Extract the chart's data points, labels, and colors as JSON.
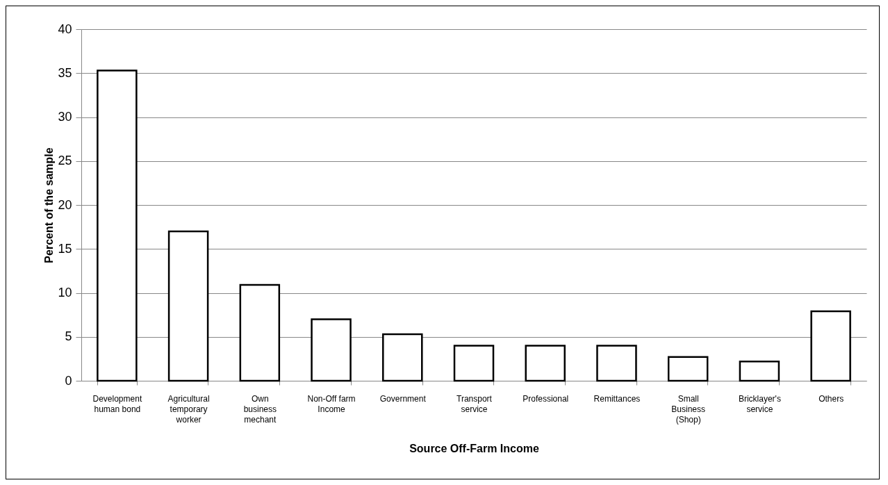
{
  "chart_data": {
    "type": "bar",
    "xlabel": "Source Off-Farm Income",
    "ylabel": "Percent of the sample",
    "categories": [
      "Development human bond",
      "Agricultural temporary worker",
      "Own business mechant",
      "Non-Off farm Income",
      "Government",
      "Transport service",
      "Professional",
      "Remittances",
      "Small Business (Shop)",
      "Bricklayer's service",
      "Others"
    ],
    "values": [
      35.3,
      17.0,
      10.9,
      7.0,
      5.3,
      4.0,
      4.0,
      4.0,
      2.7,
      2.2,
      7.9
    ],
    "color": "#ffffff",
    "ylim": [
      0,
      40
    ],
    "yticks": [
      0,
      5,
      10,
      15,
      20,
      25,
      30,
      35,
      40
    ],
    "grid": "y"
  }
}
